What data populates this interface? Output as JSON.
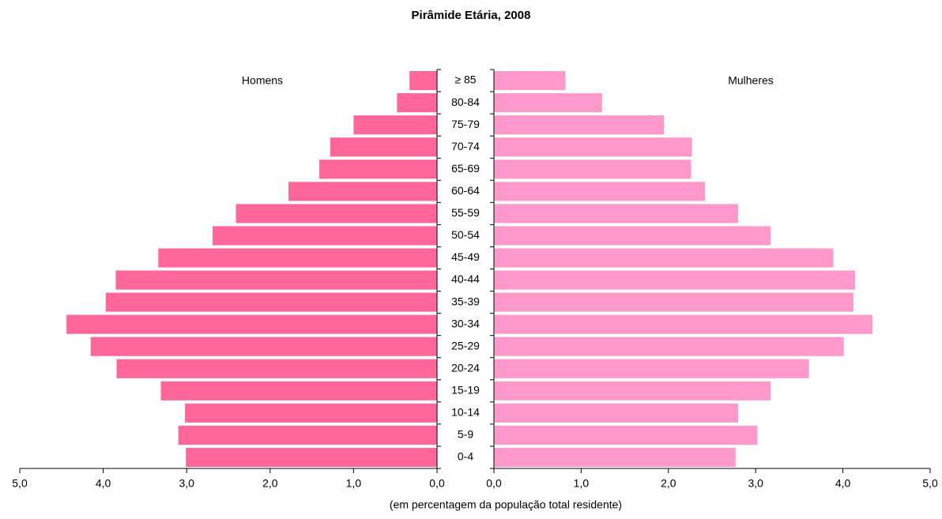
{
  "chart_data": {
    "type": "pyramid",
    "title": "Pirâmide Etária, 2008",
    "x_label": "(em percentagem da população total residente)",
    "categories": [
      "≥ 85",
      "80-84",
      "75-79",
      "70-74",
      "65-69",
      "60-64",
      "55-59",
      "50-54",
      "45-49",
      "40-44",
      "35-39",
      "30-34",
      "25-29",
      "20-24",
      "15-19",
      "10-14",
      "5-9",
      "0-4"
    ],
    "series": [
      {
        "name": "Homens",
        "color": "#ff6699",
        "values": [
          0.33,
          0.48,
          1.0,
          1.28,
          1.41,
          1.78,
          2.41,
          2.69,
          3.34,
          3.85,
          3.97,
          4.44,
          4.15,
          3.84,
          3.31,
          3.02,
          3.1,
          3.01
        ]
      },
      {
        "name": "Mulheres",
        "color": "#ff99cc",
        "values": [
          0.82,
          1.24,
          1.95,
          2.27,
          2.26,
          2.42,
          2.8,
          3.17,
          3.89,
          4.14,
          4.12,
          4.34,
          4.01,
          3.61,
          3.17,
          2.8,
          3.02,
          2.77
        ]
      }
    ],
    "xlim": [
      0,
      5
    ],
    "xticks": [
      {
        "value": 0,
        "label": "0,0"
      },
      {
        "value": 1,
        "label": "1,0"
      },
      {
        "value": 2,
        "label": "2,0"
      },
      {
        "value": 3,
        "label": "3,0"
      },
      {
        "value": 4,
        "label": "4,0"
      },
      {
        "value": 5,
        "label": "5,0"
      }
    ]
  }
}
